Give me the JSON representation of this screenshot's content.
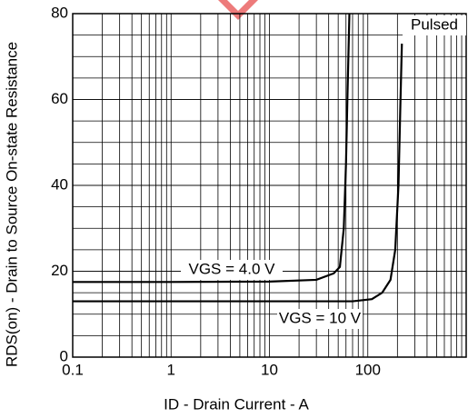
{
  "chart_data": {
    "type": "line",
    "xlabel": "ID - Drain Current - A",
    "ylabel": "RDS(on) - Drain to Source On-state Resistance",
    "annotations": [
      "VGS = 4.0 V",
      "VGS = 10 V",
      "Pulsed"
    ],
    "xscale": "log",
    "grid": true,
    "minor_grid": true,
    "xlim": [
      0.1,
      1000
    ],
    "ylim": [
      0,
      80
    ],
    "xticks": [
      0.1,
      1,
      10,
      100
    ],
    "yticks": [
      0,
      20,
      40,
      60,
      80
    ],
    "series": [
      {
        "name": "VGS = 4.0 V",
        "color": "#000000",
        "x": [
          0.1,
          1,
          10,
          30,
          45,
          52,
          57,
          60,
          62,
          65
        ],
        "values": [
          17.5,
          17.5,
          17.6,
          18,
          19.5,
          21,
          30,
          45,
          60,
          80
        ]
      },
      {
        "name": "VGS = 10 V",
        "color": "#000000",
        "x": [
          0.1,
          1,
          10,
          70,
          110,
          140,
          170,
          190,
          205,
          215,
          222
        ],
        "values": [
          13,
          13,
          13,
          13,
          13.5,
          15,
          18,
          25,
          40,
          60,
          73
        ]
      }
    ]
  }
}
